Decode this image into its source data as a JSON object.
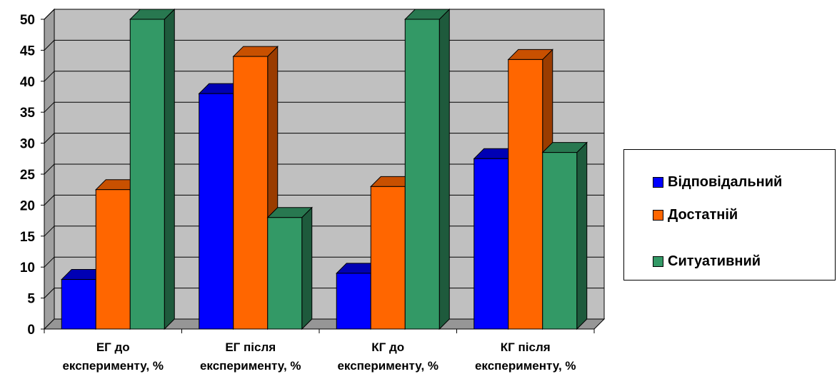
{
  "chart_data": {
    "type": "bar",
    "categories": [
      [
        "ЕГ до",
        "експерименту, %"
      ],
      [
        "ЕГ після",
        "експерименту, %"
      ],
      [
        "КГ до",
        "експерименту, %"
      ],
      [
        "КГ після",
        "експерименту, %"
      ]
    ],
    "series": [
      {
        "name": "Відповідальний",
        "values": [
          8,
          38,
          9,
          27.5
        ]
      },
      {
        "name": "Достатній",
        "values": [
          22.5,
          44,
          23,
          43.5
        ]
      },
      {
        "name": "Ситуативний",
        "values": [
          50,
          18,
          50,
          28.5
        ]
      }
    ],
    "ylim": [
      0,
      50
    ],
    "yticks": [
      0,
      5,
      10,
      15,
      20,
      25,
      30,
      35,
      40,
      45,
      50
    ],
    "grid": true,
    "legend_position": "right",
    "colors": {
      "series": [
        "#0000ff",
        "#ff6600",
        "#339966"
      ],
      "series_side": [
        "#00007a",
        "#9a3c00",
        "#1e5a3c"
      ],
      "series_top": [
        "#0000b4",
        "#c85000",
        "#287850"
      ],
      "plot_back": "#c0c0c0",
      "plot_floor": "#969696"
    },
    "legend": {
      "items": [
        {
          "label": "Відповідальний"
        },
        {
          "label": "Достатній"
        },
        {
          "label": "Ситуативний"
        }
      ]
    }
  }
}
